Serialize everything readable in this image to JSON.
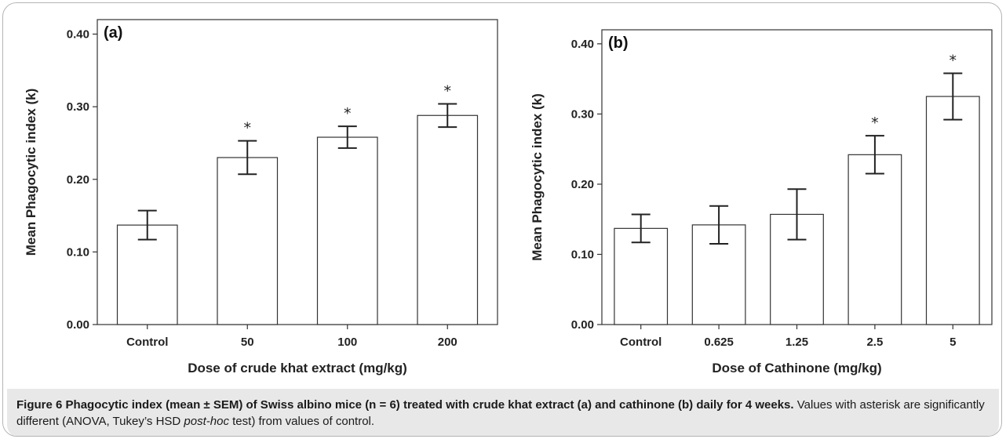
{
  "chart_data": [
    {
      "type": "bar",
      "panel_label": "(a)",
      "categories": [
        "Control",
        "50",
        "100",
        "200"
      ],
      "values": [
        0.137,
        0.23,
        0.258,
        0.288
      ],
      "errors": [
        0.02,
        0.023,
        0.015,
        0.016
      ],
      "significant": [
        false,
        true,
        true,
        true
      ],
      "significance_marker": "*",
      "xlabel": "Dose of crude khat extract (mg/kg)",
      "ylabel": "Mean Phagocytic index (k)",
      "ylim": [
        0,
        0.42
      ],
      "yticks": [
        "0.00",
        "0.10",
        "0.20",
        "0.30",
        "0.40"
      ],
      "grid": false
    },
    {
      "type": "bar",
      "panel_label": "(b)",
      "categories": [
        "Control",
        "0.625",
        "1.25",
        "2.5",
        "5"
      ],
      "values": [
        0.137,
        0.142,
        0.157,
        0.242,
        0.325
      ],
      "errors": [
        0.02,
        0.027,
        0.036,
        0.027,
        0.033
      ],
      "significant": [
        false,
        false,
        false,
        true,
        true
      ],
      "significance_marker": "*",
      "xlabel": "Dose of Cathinone (mg/kg)",
      "ylabel": "Mean Phagocytic index (k)",
      "ylim": [
        0,
        0.42
      ],
      "yticks": [
        "0.00",
        "0.10",
        "0.20",
        "0.30",
        "0.40"
      ],
      "grid": false
    }
  ],
  "caption": {
    "label": "Figure 6",
    "title": "Phagocytic index (mean ± SEM) of Swiss albino mice (n = 6) treated with crude khat extract (a) and cathinone (b) daily for 4 weeks.",
    "text_before_italic": "Values with asterisk are significantly different (ANOVA, Tukey’s HSD ",
    "italic": "post-hoc",
    "text_after_italic": " test) from values of control."
  },
  "colors": {
    "bar_fill": "#ffffff",
    "stroke": "#333333",
    "caption_bg": "#e8e8e8"
  }
}
